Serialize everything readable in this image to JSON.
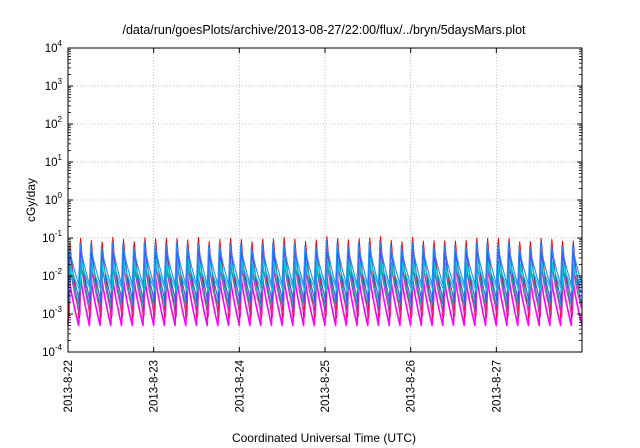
{
  "chart_data": {
    "type": "line",
    "title": "/data/run/goesPlots/archive/2013-08-27/22:00/flux/../bryn/5daysMars.plot",
    "xlabel": "Coordinated Universal Time (UTC)",
    "ylabel": "cGy/day",
    "y_scale": "log",
    "ylim": [
      0.0001,
      10000
    ],
    "xlim": [
      "2013-08-22 00:00",
      "2013-08-28 00:00"
    ],
    "grid": true,
    "y_ticks": [
      {
        "base": "10",
        "exp": "-4"
      },
      {
        "base": "10",
        "exp": "-3"
      },
      {
        "base": "10",
        "exp": "-2"
      },
      {
        "base": "10",
        "exp": "-1"
      },
      {
        "base": "10",
        "exp": "0"
      },
      {
        "base": "10",
        "exp": "1"
      },
      {
        "base": "10",
        "exp": "2"
      },
      {
        "base": "10",
        "exp": "3"
      },
      {
        "base": "10",
        "exp": "4"
      }
    ],
    "x_ticks": [
      "2013-8-22",
      "2013-8-23",
      "2013-8-24",
      "2013-8-25",
      "2013-8-26",
      "2013-8-27"
    ],
    "cycle_hours": 3,
    "series": [
      {
        "color": "#ff00ff",
        "peak": 0.011,
        "trough": 0.0005
      },
      {
        "color": "#ff0000",
        "peak": 0.09,
        "trough": 0.0008
      },
      {
        "color": "#cc33cc",
        "peak": 0.016,
        "trough": 0.0009
      },
      {
        "color": "#00aaaa",
        "peak": 0.03,
        "trough": 0.0018
      },
      {
        "color": "#4a4aff",
        "peak": 0.045,
        "trough": 0.0022
      },
      {
        "color": "#00cccc",
        "peak": 0.024,
        "trough": 0.004
      },
      {
        "color": "#1e90ff",
        "peak": 0.07,
        "trough": 0.006
      }
    ],
    "colors": {
      "axis": "#000000",
      "grid": "#b0b0b0",
      "background": "#ffffff"
    }
  }
}
